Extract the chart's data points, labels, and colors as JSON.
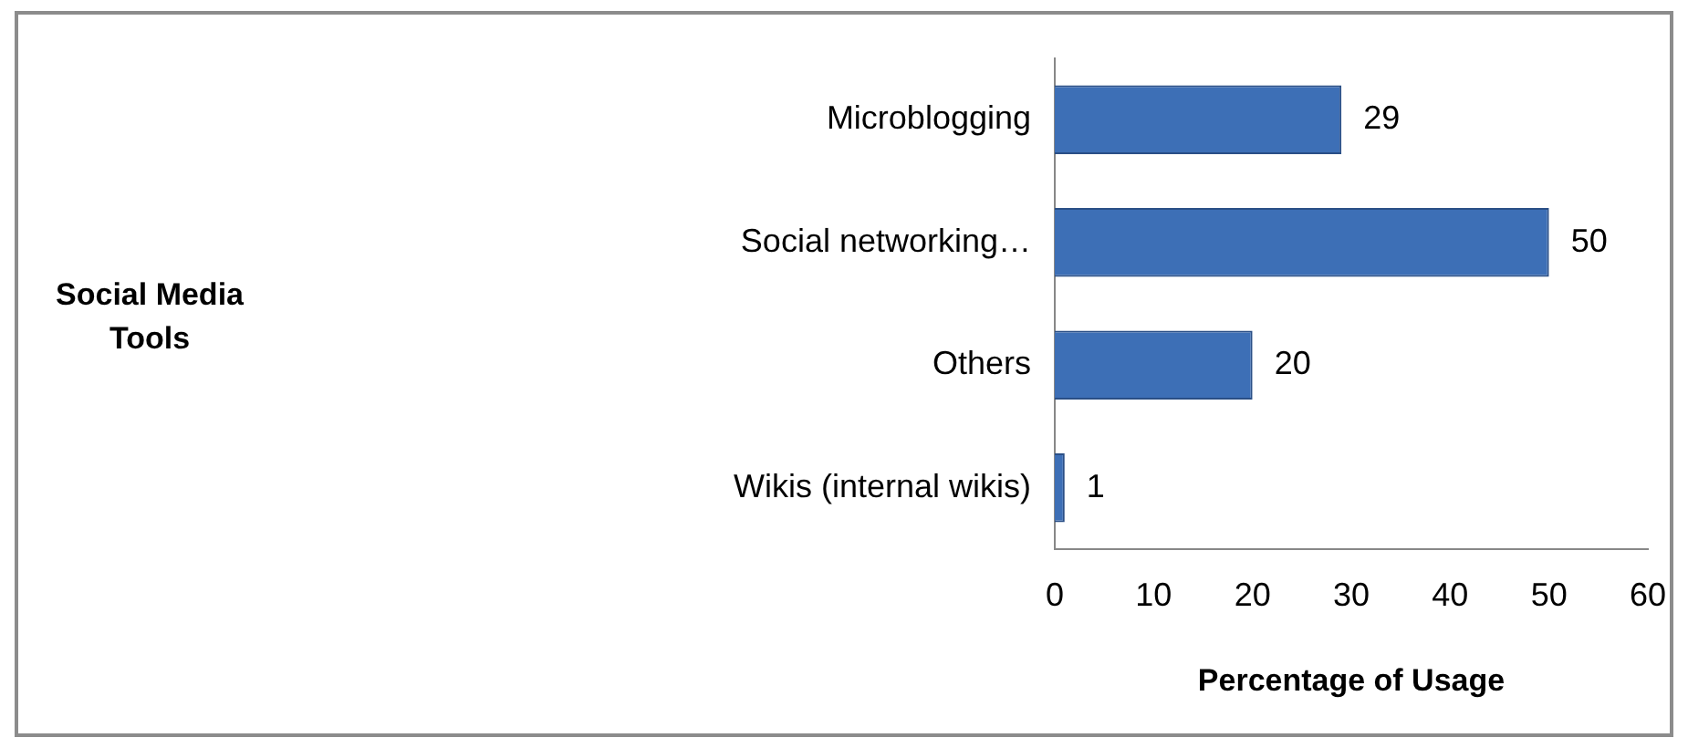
{
  "chart_data": {
    "type": "bar",
    "orientation": "horizontal",
    "categories": [
      "Microblogging",
      "Social networking…",
      "Others",
      "Wikis (internal wikis)"
    ],
    "values": [
      29,
      50,
      20,
      1
    ],
    "color": "#3d6fb6",
    "xlim": [
      0,
      60
    ],
    "xticks": [
      0,
      10,
      20,
      30,
      40,
      50,
      60
    ],
    "xlabel": "Percentage of Usage",
    "annotations": [
      "Social Media Tools"
    ],
    "data_labels": true,
    "grid": false,
    "legend": false
  }
}
